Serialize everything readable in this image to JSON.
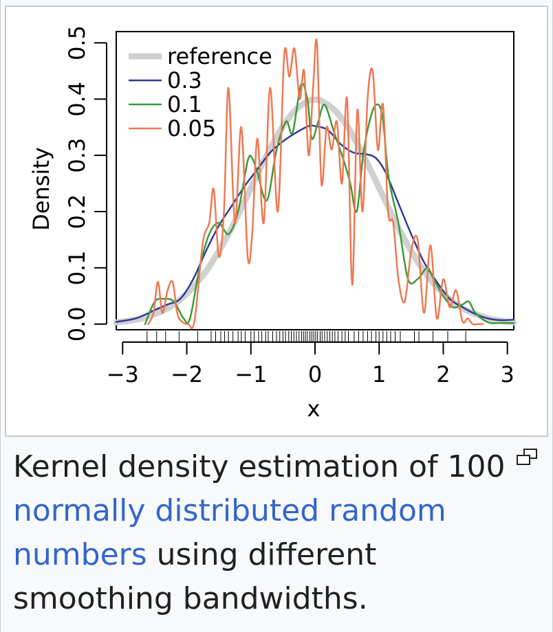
{
  "chart_data": {
    "type": "line",
    "title": "",
    "xlabel": "x",
    "ylabel": "Density",
    "xlim": [
      -3.1,
      3.1
    ],
    "ylim": [
      -0.01,
      0.52
    ],
    "x_ticks": [
      -3,
      -2,
      -1,
      0,
      1,
      2,
      3
    ],
    "x_tick_labels": [
      "−3",
      "−2",
      "−1",
      "0",
      "1",
      "2",
      "3"
    ],
    "y_ticks": [
      0.0,
      0.1,
      0.2,
      0.3,
      0.4,
      0.5
    ],
    "y_tick_labels": [
      "0.0",
      "0.1",
      "0.2",
      "0.3",
      "0.4",
      "0.5"
    ],
    "legend_position": "top-left",
    "grid": false,
    "series": [
      {
        "name": "reference",
        "color": "#d0d0d0",
        "x": [
          -3.1,
          -2.9,
          -2.7,
          -2.5,
          -2.3,
          -2.1,
          -1.9,
          -1.7,
          -1.5,
          -1.3,
          -1.1,
          -0.9,
          -0.7,
          -0.5,
          -0.3,
          -0.1,
          0.0,
          0.1,
          0.3,
          0.5,
          0.7,
          0.9,
          1.1,
          1.3,
          1.5,
          1.7,
          1.9,
          2.1,
          2.3,
          2.5,
          2.7,
          2.9,
          3.1
        ],
        "values": [
          0.003,
          0.006,
          0.01,
          0.018,
          0.028,
          0.044,
          0.066,
          0.094,
          0.13,
          0.171,
          0.218,
          0.266,
          0.312,
          0.352,
          0.381,
          0.397,
          0.399,
          0.397,
          0.381,
          0.352,
          0.312,
          0.266,
          0.218,
          0.171,
          0.13,
          0.094,
          0.066,
          0.044,
          0.028,
          0.018,
          0.01,
          0.006,
          0.003
        ]
      },
      {
        "name": "0.3",
        "color": "#2e3a9a",
        "x": [
          -3.1,
          -2.8,
          -2.5,
          -2.3,
          -2.1,
          -1.9,
          -1.7,
          -1.5,
          -1.3,
          -1.1,
          -0.9,
          -0.7,
          -0.5,
          -0.3,
          -0.1,
          0.0,
          0.2,
          0.4,
          0.6,
          0.8,
          0.95,
          1.1,
          1.3,
          1.5,
          1.7,
          1.9,
          2.1,
          2.3,
          2.5,
          2.7,
          2.9,
          3.1
        ],
        "values": [
          0.004,
          0.01,
          0.025,
          0.035,
          0.045,
          0.08,
          0.13,
          0.175,
          0.21,
          0.245,
          0.275,
          0.305,
          0.325,
          0.34,
          0.352,
          0.352,
          0.345,
          0.32,
          0.305,
          0.302,
          0.295,
          0.27,
          0.215,
          0.16,
          0.11,
          0.075,
          0.045,
          0.03,
          0.018,
          0.01,
          0.007,
          0.008
        ]
      },
      {
        "name": "0.1",
        "color": "#3a9a3a",
        "x": [
          -2.65,
          -2.5,
          -2.35,
          -2.2,
          -2.05,
          -1.95,
          -1.8,
          -1.65,
          -1.5,
          -1.35,
          -1.2,
          -1.05,
          -0.98,
          -0.9,
          -0.75,
          -0.6,
          -0.45,
          -0.35,
          -0.22,
          -0.12,
          -0.05,
          0.05,
          0.15,
          0.3,
          0.45,
          0.55,
          0.65,
          0.75,
          0.85,
          0.95,
          1.05,
          1.15,
          1.3,
          1.45,
          1.6,
          1.75,
          1.85,
          2.0,
          2.15,
          2.3,
          2.4,
          2.5,
          2.7,
          2.9,
          3.1
        ],
        "values": [
          0.0,
          0.04,
          0.045,
          0.04,
          0.01,
          0.01,
          0.1,
          0.16,
          0.18,
          0.16,
          0.2,
          0.29,
          0.295,
          0.27,
          0.22,
          0.31,
          0.36,
          0.34,
          0.425,
          0.4,
          0.33,
          0.36,
          0.39,
          0.34,
          0.29,
          0.25,
          0.2,
          0.3,
          0.36,
          0.39,
          0.37,
          0.26,
          0.18,
          0.08,
          0.08,
          0.1,
          0.08,
          0.05,
          0.03,
          0.035,
          0.04,
          0.02,
          0.003,
          0.002,
          0.002
        ]
      },
      {
        "name": "0.05",
        "color": "#f07850",
        "x": [
          -2.6,
          -2.52,
          -2.45,
          -2.38,
          -2.3,
          -2.22,
          -2.15,
          -2.08,
          -1.98,
          -1.88,
          -1.75,
          -1.65,
          -1.58,
          -1.5,
          -1.42,
          -1.35,
          -1.25,
          -1.15,
          -1.05,
          -0.98,
          -0.9,
          -0.8,
          -0.7,
          -0.58,
          -0.48,
          -0.4,
          -0.32,
          -0.24,
          -0.17,
          -0.1,
          -0.03,
          0.03,
          0.1,
          0.18,
          0.26,
          0.34,
          0.42,
          0.5,
          0.58,
          0.66,
          0.74,
          0.82,
          0.9,
          0.98,
          1.06,
          1.14,
          1.22,
          1.3,
          1.4,
          1.5,
          1.6,
          1.7,
          1.8,
          1.9,
          2.0,
          2.1,
          2.2,
          2.3,
          2.38,
          2.46,
          2.54,
          2.62
        ],
        "values": [
          0.0,
          0.02,
          0.075,
          0.02,
          0.06,
          0.075,
          0.02,
          0.005,
          0.0,
          0.005,
          0.145,
          0.18,
          0.24,
          0.12,
          0.2,
          0.42,
          0.18,
          0.35,
          0.12,
          0.16,
          0.33,
          0.18,
          0.42,
          0.2,
          0.48,
          0.44,
          0.49,
          0.4,
          0.45,
          0.3,
          0.42,
          0.5,
          0.25,
          0.35,
          0.31,
          0.36,
          0.25,
          0.4,
          0.07,
          0.38,
          0.2,
          0.4,
          0.45,
          0.31,
          0.39,
          0.2,
          0.18,
          0.08,
          0.04,
          0.13,
          0.15,
          0.02,
          0.14,
          0.01,
          0.08,
          0.03,
          0.06,
          0.005,
          0.01,
          0.0,
          0.0,
          0.0
        ]
      }
    ],
    "rug": [
      -2.62,
      -2.47,
      -2.33,
      -2.12,
      -1.83,
      -1.62,
      -1.55,
      -1.47,
      -1.41,
      -1.35,
      -1.28,
      -1.2,
      -1.15,
      -1.09,
      -1.0,
      -0.95,
      -0.88,
      -0.83,
      -0.77,
      -0.73,
      -0.66,
      -0.6,
      -0.55,
      -0.5,
      -0.46,
      -0.41,
      -0.37,
      -0.33,
      -0.29,
      -0.25,
      -0.21,
      -0.18,
      -0.15,
      -0.12,
      -0.08,
      -0.05,
      -0.02,
      0.01,
      0.04,
      0.08,
      0.11,
      0.15,
      0.19,
      0.23,
      0.27,
      0.31,
      0.36,
      0.42,
      0.47,
      0.52,
      0.61,
      0.68,
      0.75,
      0.82,
      0.88,
      0.95,
      1.0,
      1.06,
      1.12,
      1.18,
      1.25,
      1.33,
      1.55,
      1.62,
      1.84,
      2.07,
      2.35
    ]
  },
  "caption": {
    "text_before": "Kernel density estimation of 100",
    "link_text": "normally distributed random numbers",
    "text_after": "using different smoothing bandwidths."
  },
  "icons": {
    "enlarge": "enlarge-icon"
  },
  "colors": {
    "link": "#3366cc",
    "caption_text": "#202122",
    "frame_border": "#c8ccd1",
    "background": "#f8f9fa"
  }
}
